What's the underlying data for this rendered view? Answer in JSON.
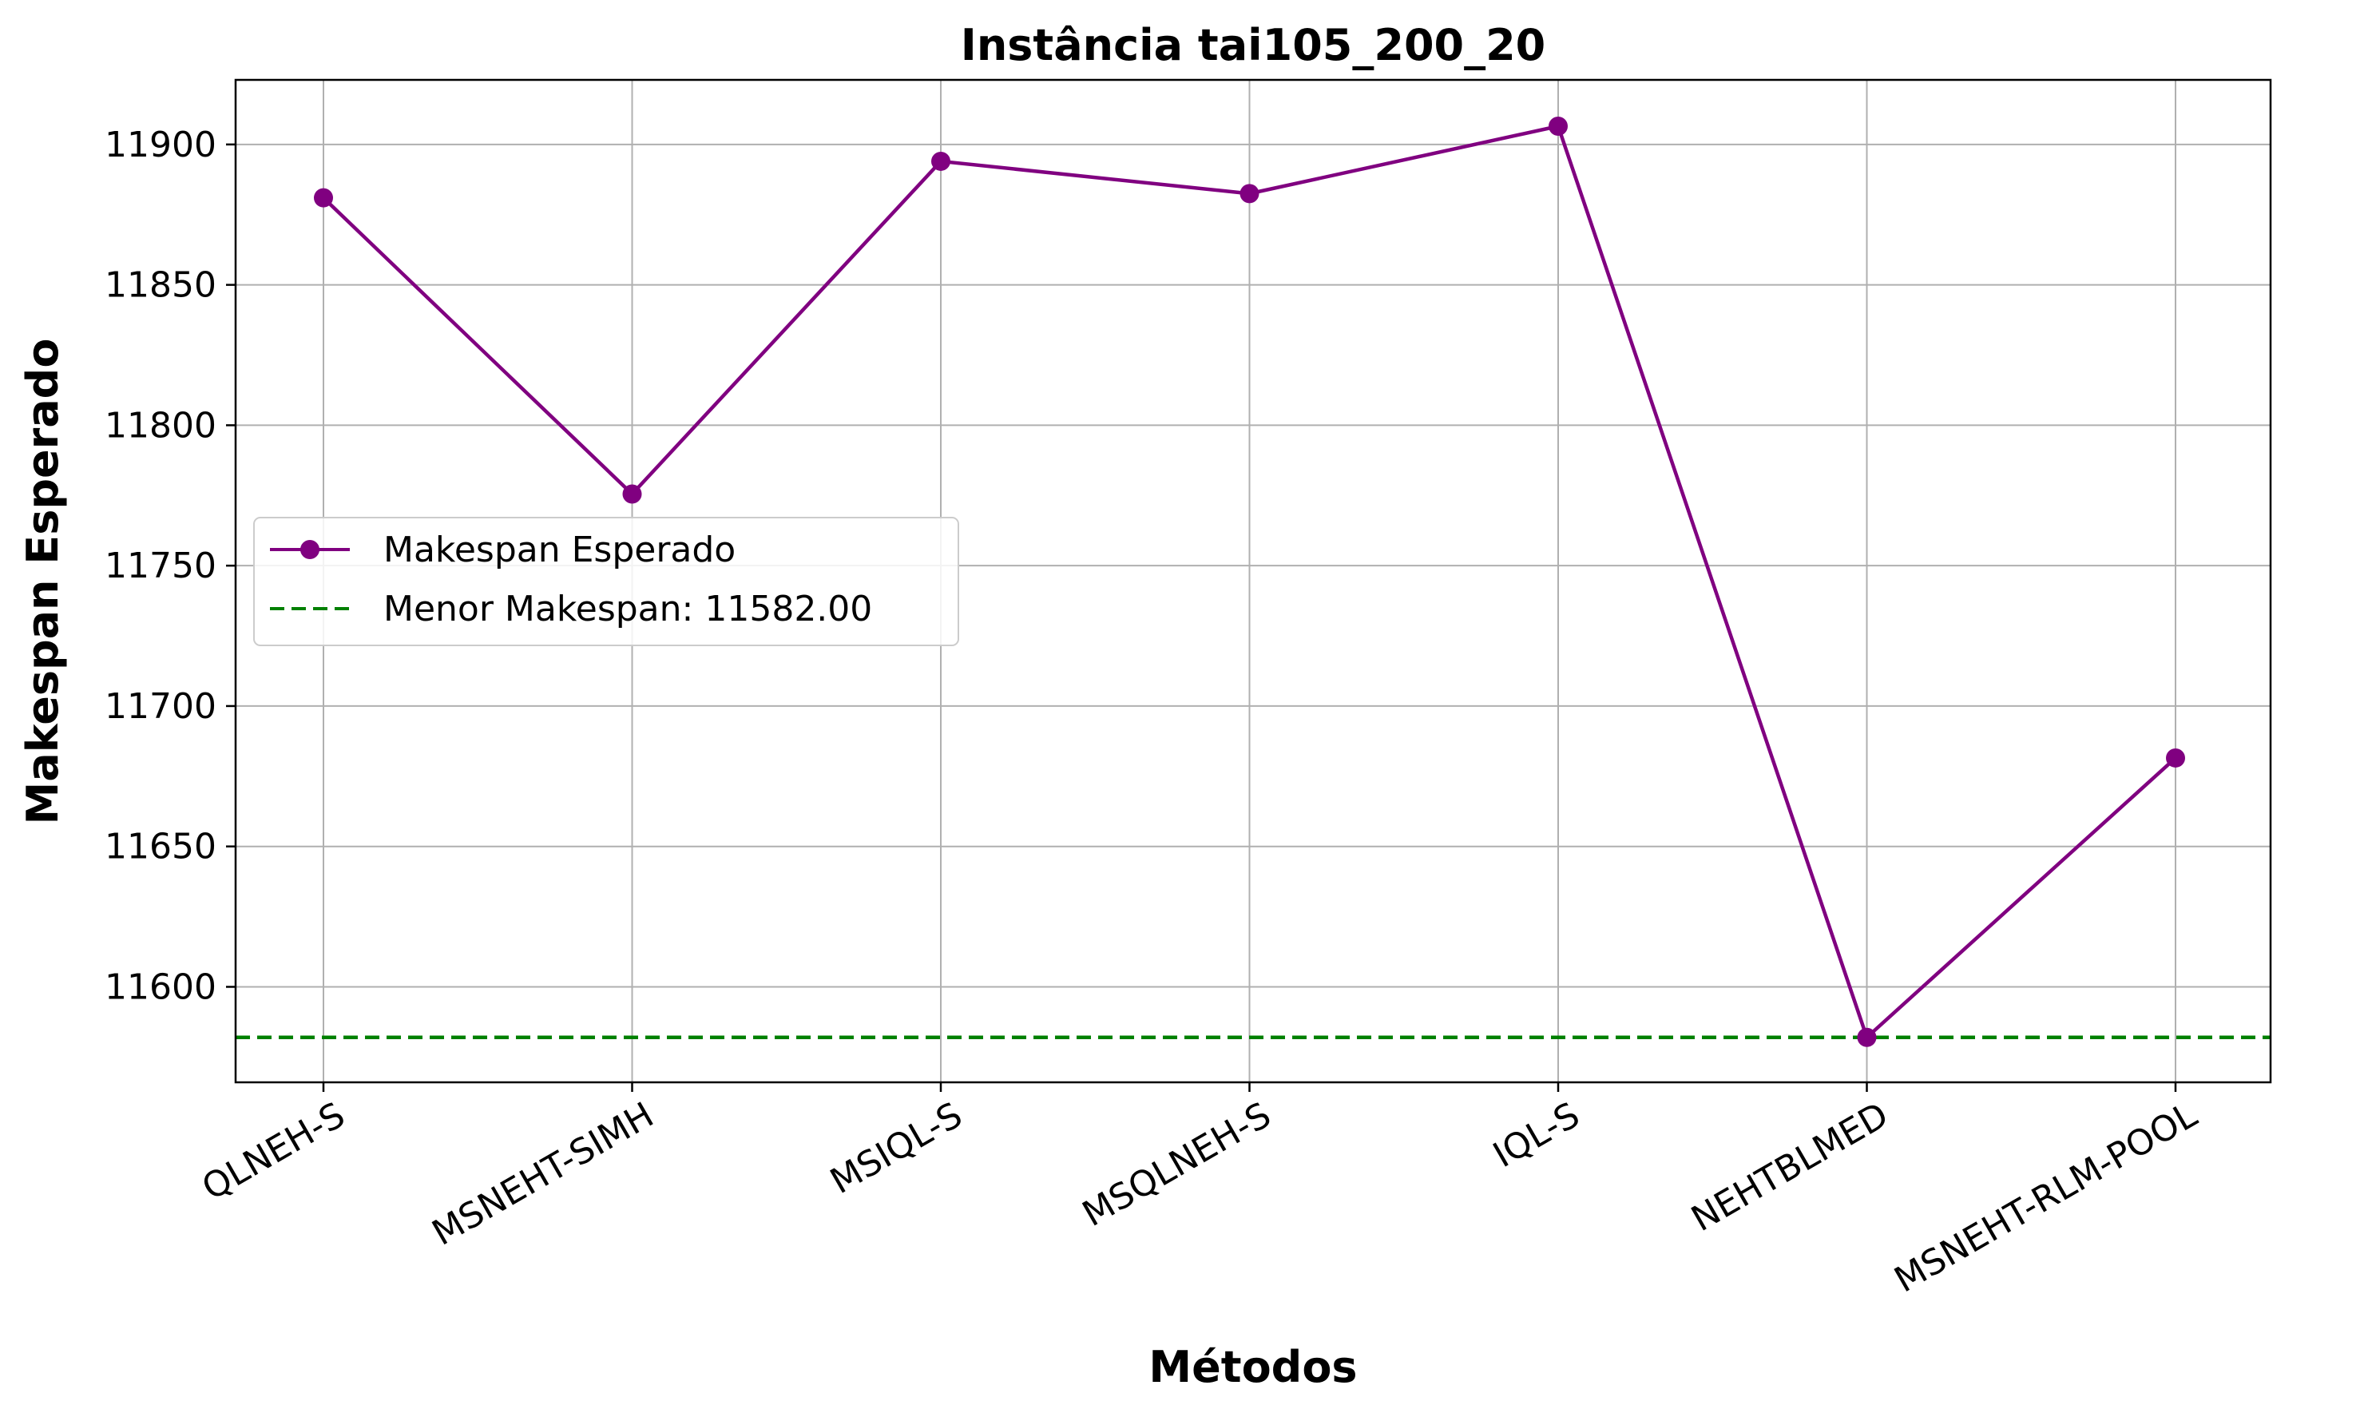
{
  "chart_data": {
    "type": "line",
    "title": "Instância tai105_200_20",
    "xlabel": "Métodos",
    "ylabel": "Makespan Esperado",
    "categories": [
      "QLNEH-S",
      "MSNEHT-SIMH",
      "MSIQL-S",
      "MSQLNEH-S",
      "IQL-S",
      "NEHTBLMED",
      "MSNEHT-RLM-POOL"
    ],
    "series": [
      {
        "name": "Makespan Esperado",
        "color": "#800080",
        "marker": "circle",
        "values": [
          11881,
          11775.5,
          11894,
          11882.5,
          11906.5,
          11582,
          11681.5
        ]
      }
    ],
    "reference_line": {
      "name": "Menor Makespan: 11582.00",
      "value": 11582.0,
      "color": "#008000",
      "style": "dashed"
    },
    "ylim": [
      11566,
      11923
    ],
    "yticks": [
      11600,
      11650,
      11700,
      11750,
      11800,
      11850,
      11900
    ],
    "grid": true,
    "legend_position": "center-left"
  }
}
